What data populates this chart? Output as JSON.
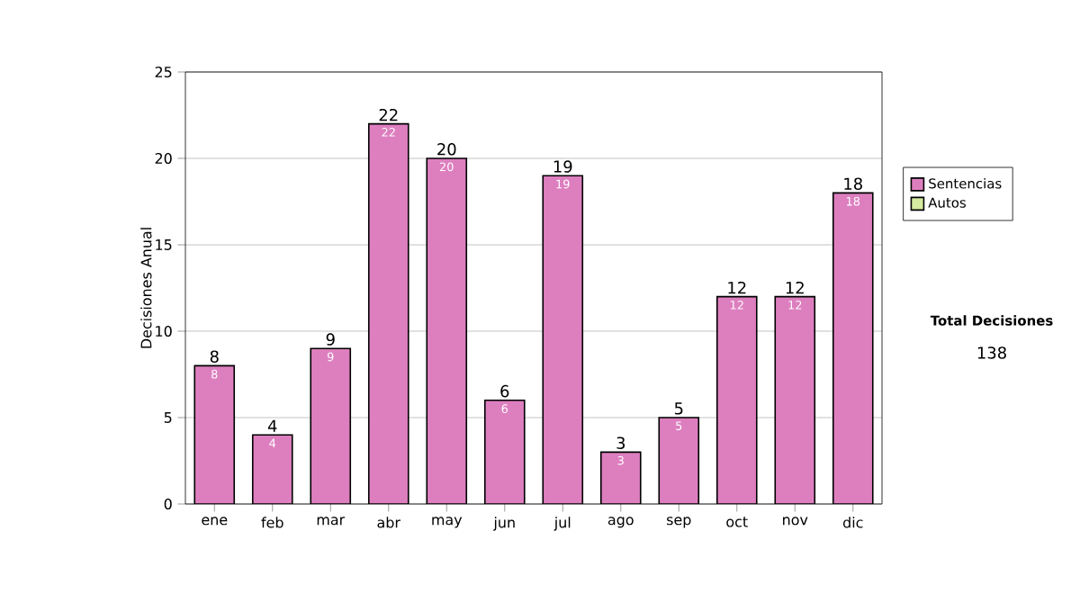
{
  "chart_data": {
    "type": "bar",
    "ylabel": "Decisiones Anual",
    "categories": [
      "ene",
      "feb",
      "mar",
      "abr",
      "may",
      "jun",
      "jul",
      "ago",
      "sep",
      "oct",
      "nov",
      "dic"
    ],
    "stacked": true,
    "series": [
      {
        "name": "Sentencias",
        "color": "#dd7fbf",
        "values": [
          8,
          4,
          9,
          22,
          20,
          6,
          19,
          3,
          5,
          12,
          12,
          18
        ],
        "value_labels": [
          "8",
          "4",
          "9",
          "22",
          "20",
          "6",
          "19",
          "3",
          "5",
          "12",
          "12",
          "18"
        ]
      },
      {
        "name": "Autos",
        "color": "#d4eba0",
        "values": [
          0,
          0,
          0,
          0,
          0,
          0,
          0,
          0,
          0,
          0,
          0,
          0
        ]
      }
    ],
    "totals": [
      "8",
      "4",
      "9",
      "22",
      "20",
      "6",
      "19",
      "3",
      "5",
      "12",
      "12",
      "18"
    ],
    "ylim": [
      0,
      25
    ],
    "yticks": [
      0,
      5,
      10,
      15,
      20,
      25
    ],
    "grid": "y",
    "legend": "right",
    "annotations": [
      "Total Decisiones",
      "138"
    ]
  }
}
